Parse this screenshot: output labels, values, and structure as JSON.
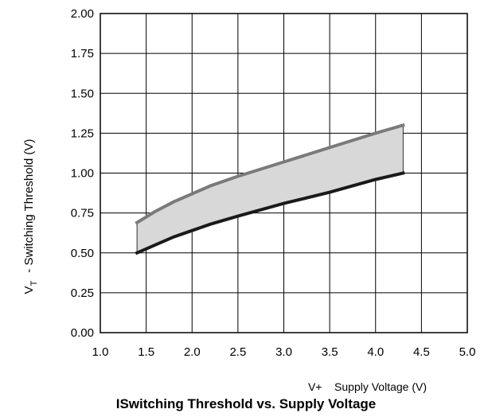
{
  "chart_data": {
    "type": "area",
    "title": "ISwitching Threshold vs. Supply Voltage",
    "xlabel_symbol": "V+",
    "xlabel": "Supply Voltage (V)",
    "ylabel_symbol": "V",
    "ylabel_subscript": "T",
    "ylabel": "- Switching Threshold (V)",
    "xlim": [
      1.0,
      5.0
    ],
    "ylim": [
      0.0,
      2.0
    ],
    "xticks": [
      "1.0",
      "1.5",
      "2.0",
      "2.5",
      "3.0",
      "3.5",
      "4.0",
      "4.5",
      "5.0"
    ],
    "yticks": [
      "0.00",
      "0.25",
      "0.50",
      "0.75",
      "1.00",
      "1.25",
      "1.50",
      "1.75",
      "2.00"
    ],
    "grid": true,
    "fill_color": "#d8d8d8",
    "series": [
      {
        "role": "upper",
        "color": "#7a7a7a",
        "x": [
          1.4,
          1.6,
          1.8,
          2.0,
          2.2,
          2.5,
          3.0,
          3.5,
          4.0,
          4.3
        ],
        "values": [
          0.69,
          0.76,
          0.82,
          0.87,
          0.92,
          0.98,
          1.07,
          1.16,
          1.25,
          1.3
        ]
      },
      {
        "role": "lower",
        "color": "#1a1a1a",
        "x": [
          1.4,
          1.6,
          1.8,
          2.0,
          2.2,
          2.5,
          3.0,
          3.5,
          4.0,
          4.3
        ],
        "values": [
          0.5,
          0.55,
          0.6,
          0.64,
          0.68,
          0.73,
          0.81,
          0.88,
          0.96,
          1.0
        ]
      }
    ]
  }
}
